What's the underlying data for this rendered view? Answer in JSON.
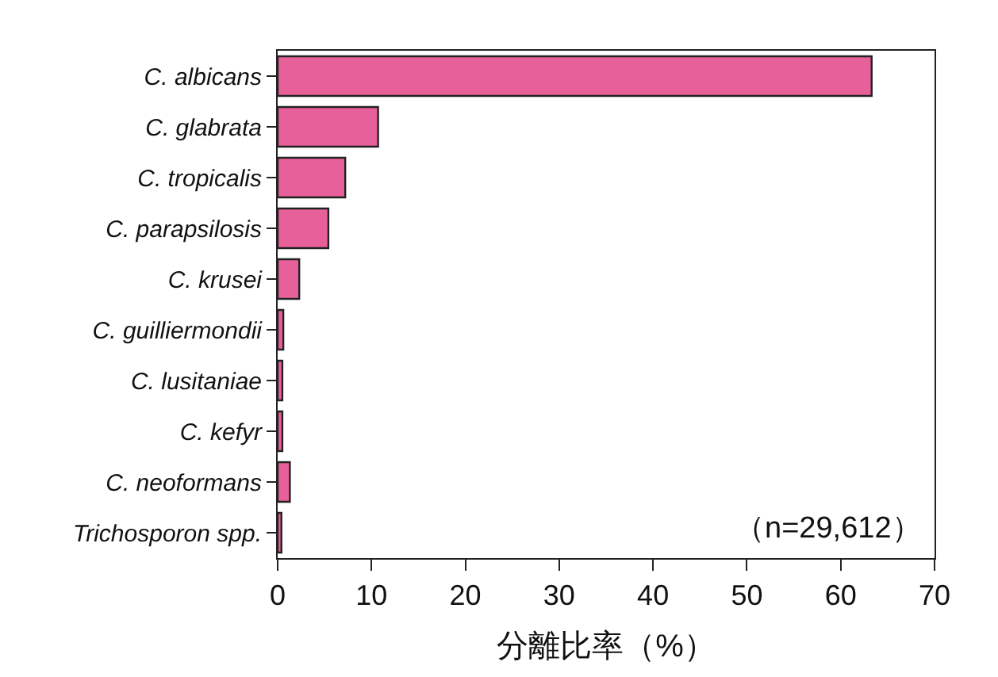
{
  "chart_data": {
    "type": "bar",
    "orientation": "horizontal",
    "xlabel": "分離比率（%）",
    "categories": [
      "C. albicans",
      "C. glabrata",
      "C. tropicalis",
      "C. parapsilosis",
      "C. krusei",
      "C. guilliermondii",
      "C. lusitaniae",
      "C. kefyr",
      "C. neoformans",
      "Trichosporon spp."
    ],
    "values": [
      63.3,
      10.7,
      7.2,
      5.4,
      2.3,
      0.6,
      0.5,
      0.5,
      1.3,
      0.4
    ],
    "color": "#e8609a",
    "xlim": [
      0,
      70
    ],
    "xticks": [
      0,
      10,
      20,
      30,
      40,
      50,
      60,
      70
    ],
    "annotations": [
      "（n=29,612）"
    ]
  }
}
